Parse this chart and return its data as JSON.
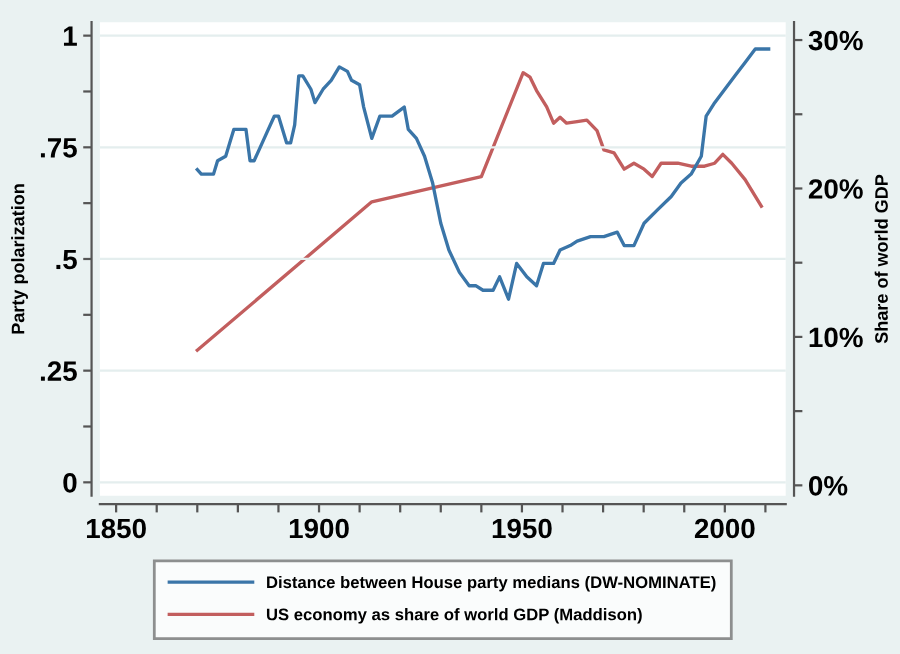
{
  "chart_data": {
    "type": "line",
    "ylabel": "Party polarization",
    "y2label": "Share of world GDP",
    "xlim": [
      1846,
      2015
    ],
    "xticks": [
      1850,
      {
        "value": 1860,
        "label": null
      },
      {
        "value": 1870,
        "label": null
      },
      {
        "value": 1880,
        "label": null
      },
      {
        "value": 1890,
        "label": null
      },
      1900,
      {
        "value": 1910,
        "label": null
      },
      {
        "value": 1920,
        "label": null
      },
      {
        "value": 1930,
        "label": null
      },
      {
        "value": 1940,
        "label": null
      },
      1950,
      {
        "value": 1960,
        "label": null
      },
      {
        "value": 1970,
        "label": null
      },
      {
        "value": 1980,
        "label": null
      },
      {
        "value": 1990,
        "label": null
      },
      2000,
      {
        "value": 2010,
        "label": null
      }
    ],
    "ylim": [
      -0.03,
      1.03
    ],
    "yticks": [
      {
        "value": 0,
        "label": "0"
      },
      {
        "value": 0.125,
        "label": null
      },
      {
        "value": 0.25,
        "label": ".25"
      },
      {
        "value": 0.375,
        "label": null
      },
      {
        "value": 0.5,
        "label": ".5"
      },
      {
        "value": 0.625,
        "label": null
      },
      {
        "value": 0.75,
        "label": ".75"
      },
      {
        "value": 0.875,
        "label": null
      },
      {
        "value": 1,
        "label": "1"
      }
    ],
    "y2lim": [
      -0.7,
      31.2
    ],
    "y2ticks": [
      {
        "value": 0,
        "label": "0%"
      },
      {
        "value": 5,
        "label": null
      },
      {
        "value": 10,
        "label": "10%"
      },
      {
        "value": 15,
        "label": null
      },
      {
        "value": 20,
        "label": "20%"
      },
      {
        "value": 25,
        "label": null
      },
      {
        "value": 30,
        "label": "30%"
      }
    ],
    "grid": "y",
    "legend": "bottom",
    "marker": "none",
    "line_style": "solid",
    "series": [
      {
        "name": "Distance between House party medians (DW-NOMINATE)",
        "color": "#3a75a8",
        "x": [
          1870,
          1871,
          1874,
          1875,
          1877,
          1878,
          1879,
          1882,
          1883,
          1884,
          1886,
          1887,
          1889,
          1890,
          1892,
          1893,
          1894,
          1895,
          1896,
          1898,
          1899,
          1901,
          1903,
          1905,
          1907,
          1908,
          1910,
          1911,
          1913,
          1915,
          1918,
          1921,
          1922,
          1924,
          1926,
          1928,
          1930,
          1932,
          1934.6,
          1937,
          1938.7,
          1940.4,
          1942.9,
          1944.5,
          1946.7,
          1948.7,
          1951.2,
          1953.6,
          1955.3,
          1957.8,
          1959.4,
          1961.9,
          1963.6,
          1966.9,
          1970.2,
          1973.5,
          1975.2,
          1977.6,
          1980.1,
          1983.4,
          1986.8,
          1989.2,
          1991.7,
          1994.2,
          1995.4,
          1997.5,
          2000,
          2002.5,
          2005,
          2007.5,
          2010.8
        ],
        "values": [
          0.7,
          0.69,
          0.69,
          0.72,
          0.73,
          0.76,
          0.79,
          0.79,
          0.72,
          0.72,
          0.76,
          0.78,
          0.82,
          0.82,
          0.76,
          0.76,
          0.8,
          0.91,
          0.91,
          0.88,
          0.85,
          0.88,
          0.9,
          0.93,
          0.92,
          0.9,
          0.89,
          0.84,
          0.77,
          0.82,
          0.82,
          0.84,
          0.79,
          0.77,
          0.73,
          0.67,
          0.58,
          0.52,
          0.47,
          0.44,
          0.44,
          0.43,
          0.43,
          0.46,
          0.41,
          0.49,
          0.46,
          0.44,
          0.49,
          0.49,
          0.52,
          0.53,
          0.54,
          0.55,
          0.55,
          0.56,
          0.53,
          0.53,
          0.58,
          0.61,
          0.64,
          0.67,
          0.69,
          0.73,
          0.82,
          0.85,
          0.88,
          0.91,
          0.94,
          0.97,
          0.97
        ]
      },
      {
        "name": "US economy as share of world GDP (Maddison)",
        "color": "#c25e5e",
        "axis": "y2",
        "x": [
          1870,
          1913,
          1940,
          1950.3,
          1952,
          1953.6,
          1956.1,
          1957.8,
          1959.4,
          1961,
          1963.6,
          1966,
          1968.5,
          1970.2,
          1972.7,
          1975.2,
          1977.6,
          1980.1,
          1982.1,
          1984.3,
          1988.4,
          1991.7,
          1995,
          1997.5,
          1999.5,
          2001.7,
          2005,
          2009
        ],
        "values": [
          9.1,
          19.1,
          20.8,
          27.8,
          27.5,
          26.6,
          25.5,
          24.4,
          24.8,
          24.4,
          24.5,
          24.6,
          23.9,
          22.6,
          22.4,
          21.3,
          21.7,
          21.3,
          20.8,
          21.7,
          21.7,
          21.5,
          21.5,
          21.7,
          22.3,
          21.7,
          20.6,
          18.8
        ]
      }
    ]
  }
}
